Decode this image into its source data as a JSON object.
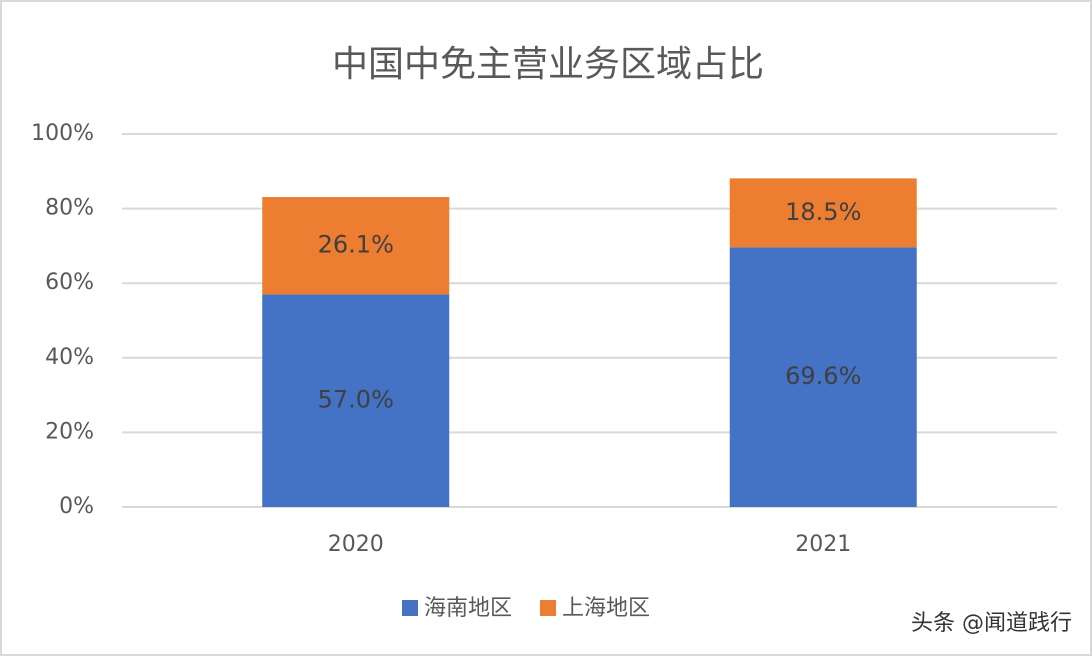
{
  "chart_data": {
    "type": "stacked_bar",
    "title": "中国中免主营业务区域占比",
    "categories": [
      "2020",
      "2021"
    ],
    "series": [
      {
        "name": "海南地区",
        "color": "#4472c4",
        "values": [
          57.0,
          69.6
        ],
        "value_labels": [
          "57.0%",
          "69.6%"
        ]
      },
      {
        "name": "上海地区",
        "color": "#ed7d31",
        "values": [
          26.1,
          18.5
        ],
        "value_labels": [
          "26.1%",
          "18.5%"
        ]
      }
    ],
    "ylim": [
      0,
      100
    ],
    "yticks": [
      {
        "value": 0,
        "label": "0%"
      },
      {
        "value": 20,
        "label": "20%"
      },
      {
        "value": 40,
        "label": "40%"
      },
      {
        "value": 60,
        "label": "60%"
      },
      {
        "value": 80,
        "label": "80%"
      },
      {
        "value": 100,
        "label": "100%"
      }
    ],
    "grid": true,
    "legend": "bottom"
  },
  "watermark": "头条 @闻道践行"
}
